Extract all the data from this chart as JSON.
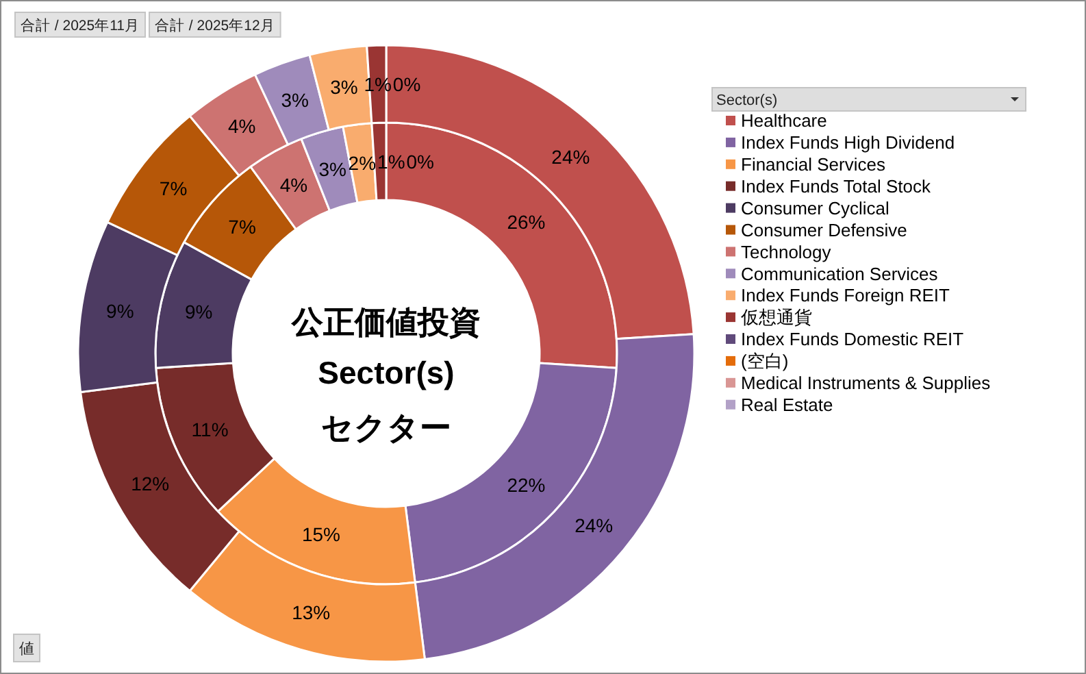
{
  "chart_data": {
    "type": "donut",
    "title": "公正価値投資",
    "subtitle": "Sector(s)",
    "legend_title": "Sector(s)",
    "annotations": [
      "合計 / 2025年11月",
      "合計 / 2025年12月",
      "セクター",
      "値"
    ],
    "categories": [
      "Healthcare",
      "Index Funds High Dividend",
      "Financial Services",
      "Index Funds Total Stock",
      "Consumer Cyclical",
      "Consumer Defensive",
      "Technology",
      "Communication Services",
      "Index Funds Foreign REIT",
      "仮想通貨",
      "Index Funds Domestic REIT",
      "(空白)",
      "Medical Instruments & Supplies",
      "Real Estate"
    ],
    "colors": [
      "#c0504d",
      "#8064a2",
      "#f79646",
      "#772c2a",
      "#4d3b62",
      "#b65708",
      "#cd7371",
      "#9f8bbb",
      "#f9ac6e",
      "#9a3533",
      "#604a7b",
      "#e46c0a",
      "#d99694",
      "#b2a1c7"
    ],
    "series": [
      {
        "values": [
          26,
          22,
          15,
          11,
          9,
          7,
          4,
          3,
          2,
          1,
          0,
          0,
          0,
          0
        ],
        "value_labels": [
          "26%",
          "22%",
          "15%",
          "11%",
          "9%",
          "7%",
          "4%",
          "3%",
          "2%",
          "1%",
          null,
          null,
          null,
          "0%"
        ]
      },
      {
        "values": [
          24,
          24,
          13,
          12,
          9,
          7,
          4,
          3,
          3,
          1,
          0,
          0,
          0,
          0
        ],
        "value_labels": [
          "24%",
          "24%",
          "13%",
          "12%",
          "9%",
          "7%",
          "4%",
          "3%",
          "3%",
          "1%",
          null,
          null,
          null,
          "0%"
        ]
      }
    ],
    "legend": "right"
  }
}
